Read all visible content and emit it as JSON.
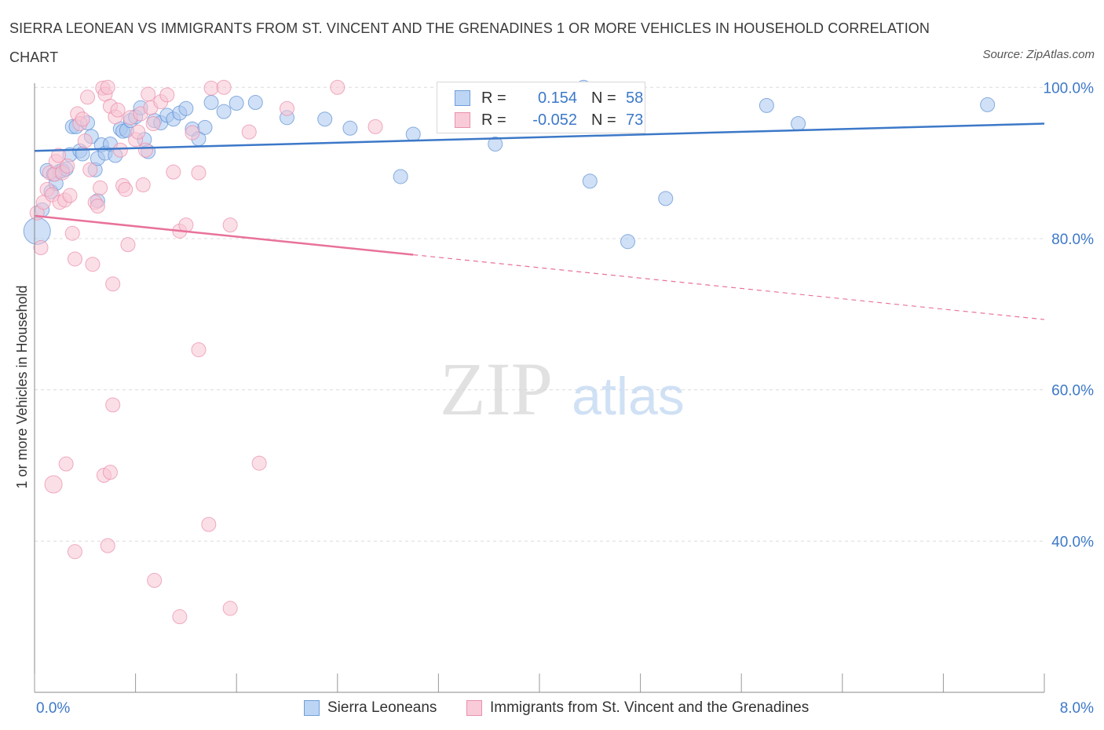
{
  "title": "SIERRA LEONEAN VS IMMIGRANTS FROM ST. VINCENT AND THE GRENADINES 1 OR MORE VEHICLES IN HOUSEHOLD CORRELATION CHART",
  "source": "Source: ZipAtlas.com",
  "watermark": {
    "zip": "ZIP",
    "atlas": "atlas"
  },
  "colors": {
    "blue": "#3c78c8",
    "pink": "#e8729a",
    "blue_fill": "#a9c7ee",
    "pink_fill": "#f4b6c9"
  },
  "legend_top": {
    "rows": [
      {
        "r_label": "R =",
        "r_value": "0.154",
        "n_label": "N =",
        "n_value": "58"
      },
      {
        "r_label": "R =",
        "r_value": "-0.052",
        "n_label": "N =",
        "n_value": "73"
      }
    ]
  },
  "chart_data": {
    "type": "scatter",
    "title": "SIERRA LEONEAN VS IMMIGRANTS FROM ST. VINCENT AND THE GRENADINES 1 OR MORE VEHICLES IN HOUSEHOLD CORRELATION CHART",
    "xlabel": "",
    "ylabel": "1 or more Vehicles in Household",
    "xlim": [
      0,
      8
    ],
    "ylim": [
      20,
      102
    ],
    "x_tick_labels": [
      "0.0%",
      "8.0%"
    ],
    "y_tick_labels": [
      "100.0%",
      "80.0%",
      "60.0%",
      "40.0%"
    ],
    "y_ticks": [
      100,
      80,
      60,
      40
    ],
    "grid": true,
    "legend_position": "bottom",
    "series": [
      {
        "name": "Sierra Leoneans",
        "color": "#3c78c8",
        "trend": {
          "x": [
            0,
            8
          ],
          "y": [
            91.6,
            95.2
          ],
          "dashed_from": null
        },
        "points": [
          [
            0.02,
            81.0
          ],
          [
            0.06,
            83.8
          ],
          [
            0.1,
            89.0
          ],
          [
            0.13,
            86.2
          ],
          [
            0.15,
            88.5
          ],
          [
            0.17,
            87.3
          ],
          [
            0.2,
            88.9
          ],
          [
            0.22,
            89.0
          ],
          [
            0.25,
            89.2
          ],
          [
            0.28,
            91.1
          ],
          [
            0.3,
            94.8
          ],
          [
            0.33,
            94.8
          ],
          [
            0.36,
            91.6
          ],
          [
            0.38,
            91.2
          ],
          [
            0.42,
            95.3
          ],
          [
            0.45,
            93.5
          ],
          [
            0.48,
            89.1
          ],
          [
            0.5,
            90.6
          ],
          [
            0.53,
            92.4
          ],
          [
            0.56,
            91.3
          ],
          [
            0.6,
            92.5
          ],
          [
            0.64,
            91.0
          ],
          [
            0.68,
            94.5
          ],
          [
            0.7,
            94.2
          ],
          [
            0.73,
            94.3
          ],
          [
            0.76,
            95.6
          ],
          [
            0.8,
            96.1
          ],
          [
            0.84,
            97.3
          ],
          [
            0.87,
            93.1
          ],
          [
            0.9,
            91.5
          ],
          [
            0.95,
            95.6
          ],
          [
            1.0,
            95.3
          ],
          [
            1.05,
            96.3
          ],
          [
            1.1,
            95.8
          ],
          [
            1.15,
            96.6
          ],
          [
            1.2,
            97.2
          ],
          [
            1.25,
            94.5
          ],
          [
            1.3,
            93.2
          ],
          [
            1.35,
            94.7
          ],
          [
            1.4,
            98.0
          ],
          [
            1.5,
            96.8
          ],
          [
            1.6,
            97.9
          ],
          [
            1.75,
            98.0
          ],
          [
            2.0,
            96.0
          ],
          [
            2.3,
            95.8
          ],
          [
            2.5,
            94.6
          ],
          [
            2.9,
            88.2
          ],
          [
            3.0,
            93.8
          ],
          [
            3.4,
            98.5
          ],
          [
            3.65,
            92.5
          ],
          [
            4.35,
            100.0
          ],
          [
            4.4,
            87.6
          ],
          [
            4.7,
            79.6
          ],
          [
            5.0,
            85.3
          ],
          [
            5.8,
            97.6
          ],
          [
            6.05,
            95.2
          ],
          [
            7.55,
            97.7
          ],
          [
            0.5,
            85.0
          ]
        ]
      },
      {
        "name": "Immigrants from St. Vincent and the Grenadines",
        "color": "#e8729a",
        "trend": {
          "x": [
            0,
            8
          ],
          "y": [
            83.0,
            69.3
          ],
          "dashed_from": 3.0
        },
        "points": [
          [
            0.02,
            83.4
          ],
          [
            0.05,
            78.8
          ],
          [
            0.07,
            84.8
          ],
          [
            0.1,
            86.5
          ],
          [
            0.12,
            88.7
          ],
          [
            0.14,
            85.8
          ],
          [
            0.16,
            88.5
          ],
          [
            0.17,
            90.2
          ],
          [
            0.19,
            91.0
          ],
          [
            0.2,
            84.8
          ],
          [
            0.22,
            88.7
          ],
          [
            0.24,
            85.1
          ],
          [
            0.26,
            89.6
          ],
          [
            0.28,
            85.7
          ],
          [
            0.3,
            80.7
          ],
          [
            0.32,
            77.3
          ],
          [
            0.34,
            96.5
          ],
          [
            0.36,
            95.2
          ],
          [
            0.38,
            95.8
          ],
          [
            0.4,
            92.9
          ],
          [
            0.42,
            98.7
          ],
          [
            0.44,
            89.1
          ],
          [
            0.46,
            76.6
          ],
          [
            0.48,
            84.8
          ],
          [
            0.5,
            84.3
          ],
          [
            0.52,
            86.7
          ],
          [
            0.54,
            99.9
          ],
          [
            0.56,
            99.1
          ],
          [
            0.58,
            100.0
          ],
          [
            0.6,
            97.5
          ],
          [
            0.62,
            74.0
          ],
          [
            0.64,
            96.1
          ],
          [
            0.66,
            97.0
          ],
          [
            0.68,
            91.7
          ],
          [
            0.7,
            87.0
          ],
          [
            0.72,
            86.5
          ],
          [
            0.74,
            79.2
          ],
          [
            0.76,
            96.0
          ],
          [
            0.8,
            93.1
          ],
          [
            0.82,
            94.1
          ],
          [
            0.84,
            96.5
          ],
          [
            0.86,
            87.1
          ],
          [
            0.88,
            91.7
          ],
          [
            0.9,
            99.1
          ],
          [
            0.92,
            97.3
          ],
          [
            0.94,
            95.2
          ],
          [
            1.0,
            98.1
          ],
          [
            1.05,
            99.0
          ],
          [
            1.1,
            88.8
          ],
          [
            1.15,
            81.0
          ],
          [
            1.2,
            81.8
          ],
          [
            1.25,
            94.0
          ],
          [
            1.3,
            88.7
          ],
          [
            1.4,
            99.9
          ],
          [
            1.5,
            100.0
          ],
          [
            1.55,
            81.8
          ],
          [
            1.7,
            94.1
          ],
          [
            2.0,
            97.2
          ],
          [
            2.4,
            100.0
          ],
          [
            2.7,
            94.8
          ],
          [
            0.15,
            47.5
          ],
          [
            0.25,
            50.2
          ],
          [
            0.32,
            38.6
          ],
          [
            0.55,
            48.7
          ],
          [
            0.58,
            39.4
          ],
          [
            0.6,
            49.1
          ],
          [
            0.62,
            58.0
          ],
          [
            0.95,
            34.8
          ],
          [
            1.15,
            30.0
          ],
          [
            1.3,
            65.3
          ],
          [
            1.38,
            42.2
          ],
          [
            1.55,
            31.1
          ],
          [
            1.78,
            50.3
          ]
        ]
      }
    ]
  },
  "legend_bottom": {
    "items": [
      "Sierra Leoneans",
      "Immigrants from St. Vincent and the Grenadines"
    ]
  }
}
